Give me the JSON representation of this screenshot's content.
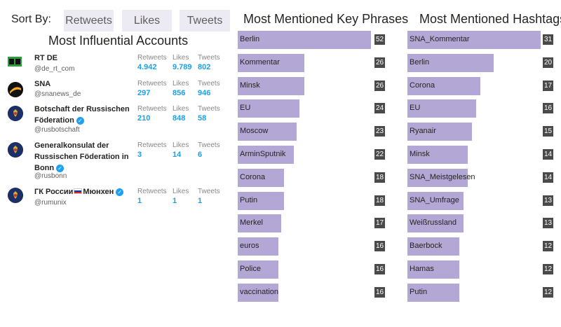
{
  "sort": {
    "label": "Sort By:",
    "options": [
      "Retweets",
      "Likes",
      "Tweets"
    ]
  },
  "accounts": {
    "title": "Most Influential Accounts",
    "stat_labels": {
      "retweets": "Retweets",
      "likes": "Likes",
      "tweets": "Tweets"
    },
    "items": [
      {
        "name": "RT DE",
        "handle": "@de_rt_com",
        "verified": false,
        "retweets": "4.942",
        "likes": "9.789",
        "tweets": "802",
        "avatar_icon": "rt-logo-icon"
      },
      {
        "name": "SNA",
        "handle": "@snanews_de",
        "verified": false,
        "retweets": "297",
        "likes": "856",
        "tweets": "946",
        "avatar_icon": "sna-logo-icon"
      },
      {
        "name": "Botschaft der Russischen Föderation",
        "handle": "@rusbotschaft",
        "verified": true,
        "retweets": "210",
        "likes": "848",
        "tweets": "58",
        "avatar_icon": "russian-emblem-icon"
      },
      {
        "name": "Generalkonsulat der Russischen Föderation in Bonn",
        "handle": "@rusbonn",
        "verified": true,
        "retweets": "3",
        "likes": "14",
        "tweets": "6",
        "avatar_icon": "russian-emblem-icon"
      },
      {
        "name": "ГК России",
        "name_suffix": "Мюнхен",
        "handle": "@rumunix",
        "verified": true,
        "retweets": "1",
        "likes": "1",
        "tweets": "1",
        "avatar_icon": "russian-emblem-icon"
      }
    ]
  },
  "key_phrases": {
    "title": "Most Mentioned Key Phrases",
    "items": [
      {
        "label": "Berlin",
        "count": 52
      },
      {
        "label": "Kommentar",
        "count": 26
      },
      {
        "label": "Minsk",
        "count": 26
      },
      {
        "label": "EU",
        "count": 24
      },
      {
        "label": "Moscow",
        "count": 23
      },
      {
        "label": "ArminSputnik",
        "count": 22
      },
      {
        "label": "Corona",
        "count": 18
      },
      {
        "label": "Putin",
        "count": 18
      },
      {
        "label": "Merkel",
        "count": 17
      },
      {
        "label": "euros",
        "count": 16
      },
      {
        "label": "Police",
        "count": 16
      },
      {
        "label": "vaccination",
        "count": 16
      }
    ]
  },
  "hashtags": {
    "title": "Most Mentioned Hashtags",
    "items": [
      {
        "label": "SNA_Kommentar",
        "count": 31
      },
      {
        "label": "Berlin",
        "count": 20
      },
      {
        "label": "Corona",
        "count": 17
      },
      {
        "label": "EU",
        "count": 16
      },
      {
        "label": "Ryanair",
        "count": 15
      },
      {
        "label": "Minsk",
        "count": 14
      },
      {
        "label": "SNA_Meistgelesen",
        "count": 14
      },
      {
        "label": "SNA_Umfrage",
        "count": 13
      },
      {
        "label": "Weißrussland",
        "count": 13
      },
      {
        "label": "Baerbock",
        "count": 12
      },
      {
        "label": "Hamas",
        "count": 12
      },
      {
        "label": "Putin",
        "count": 12
      }
    ]
  },
  "colors": {
    "bar": "#b3a8d5",
    "badge": "#4a4a4a",
    "stat_value": "#1aa0e8",
    "sort_button": "#ecebf3"
  }
}
